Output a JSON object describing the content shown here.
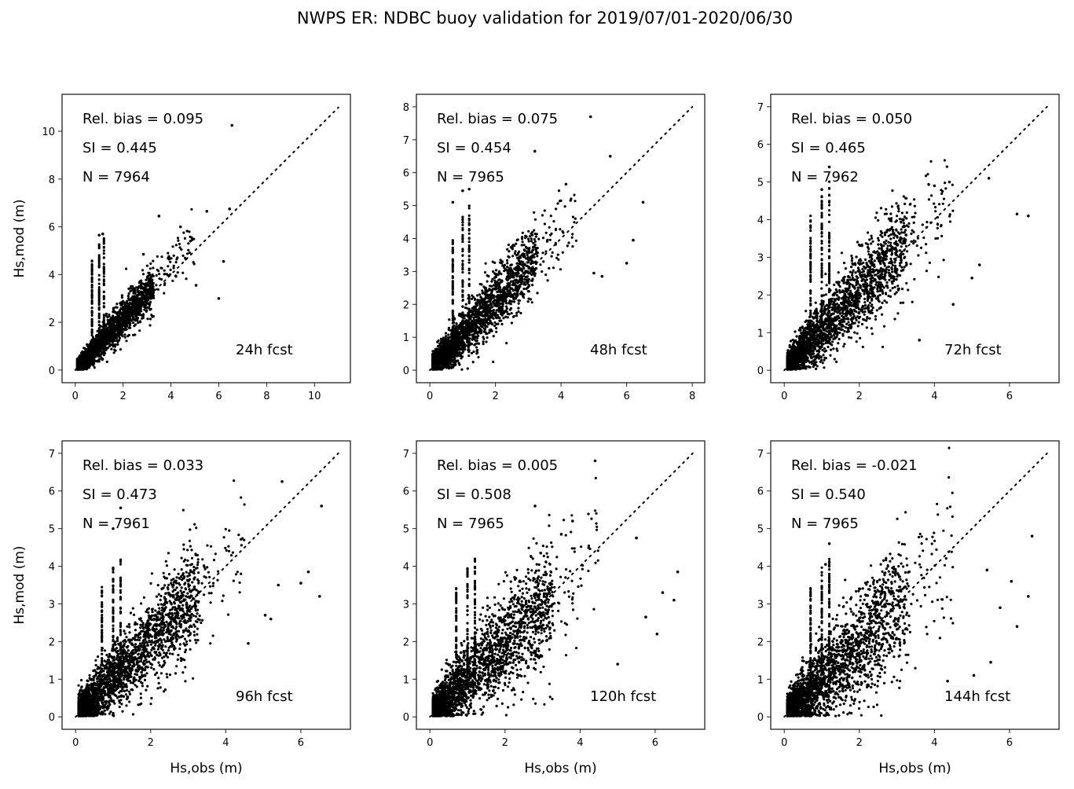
{
  "chart_data": {
    "type": "scatter",
    "title": "NWPS ER: NDBC buoy validation for 2019/07/01-2020/06/30",
    "marker_color": "#000000",
    "reference_line": "1:1 dotted diagonal",
    "panels": [
      {
        "id": "24h",
        "forecast_label": "24h fcst",
        "stats": {
          "rel_bias_label": "Rel. bias =  0.095",
          "si_label": "SI =  0.445",
          "n_label": "N = 7964"
        },
        "rel_bias": 0.095,
        "si": 0.445,
        "n": 7964,
        "xlabel": "",
        "ylabel": "Hs,mod (m)",
        "xlim": [
          -0.55,
          11.5
        ],
        "ylim": [
          -0.53,
          11.55
        ],
        "xticks": [
          0,
          2,
          4,
          6,
          8,
          10
        ],
        "yticks": [
          0,
          2,
          4,
          6,
          8,
          10
        ],
        "diag_max": 11,
        "spread": 0.3,
        "bias": 1.08,
        "outliers": [
          [
            6.55,
            10.25
          ],
          [
            3.5,
            6.45
          ],
          [
            5.5,
            6.65
          ],
          [
            6.45,
            6.75
          ],
          [
            6.2,
            4.55
          ],
          [
            6.0,
            3.0
          ],
          [
            5.05,
            3.55
          ],
          [
            4.4,
            6.0
          ],
          [
            2.85,
            4.85
          ],
          [
            1.15,
            5.7
          ],
          [
            1.0,
            5.65
          ]
        ]
      },
      {
        "id": "48h",
        "forecast_label": "48h fcst",
        "stats": {
          "rel_bias_label": "Rel. bias =  0.075",
          "si_label": "SI =  0.454",
          "n_label": "N = 7965"
        },
        "rel_bias": 0.075,
        "si": 0.454,
        "n": 7965,
        "xlabel": "",
        "ylabel": "",
        "xlim": [
          -0.41,
          8.38
        ],
        "ylim": [
          -0.38,
          8.38
        ],
        "xticks": [
          0,
          2,
          4,
          6,
          8
        ],
        "yticks": [
          0,
          1,
          2,
          3,
          4,
          5,
          6,
          7,
          8
        ],
        "diag_max": 8,
        "spread": 0.36,
        "bias": 1.06,
        "outliers": [
          [
            4.9,
            7.7
          ],
          [
            3.2,
            6.65
          ],
          [
            5.5,
            6.5
          ],
          [
            6.5,
            5.1
          ],
          [
            6.0,
            3.25
          ],
          [
            5.25,
            2.85
          ],
          [
            5.0,
            2.95
          ],
          [
            6.2,
            3.95
          ],
          [
            4.15,
            5.65
          ],
          [
            1.0,
            5.45
          ],
          [
            1.2,
            5.5
          ],
          [
            0.7,
            5.1
          ]
        ]
      },
      {
        "id": "72h",
        "forecast_label": "72h fcst",
        "stats": {
          "rel_bias_label": "Rel. bias =  0.050",
          "si_label": "SI =  0.465",
          "n_label": "N = 7962"
        },
        "rel_bias": 0.05,
        "si": 0.465,
        "n": 7962,
        "xlabel": "",
        "ylabel": "",
        "xlim": [
          -0.36,
          7.32
        ],
        "ylim": [
          -0.33,
          7.33
        ],
        "xticks": [
          0,
          2,
          4,
          6
        ],
        "yticks": [
          0,
          1,
          2,
          3,
          4,
          5,
          6,
          7
        ],
        "diag_max": 7,
        "spread": 0.4,
        "bias": 1.04,
        "outliers": [
          [
            1.2,
            5.4
          ],
          [
            6.2,
            4.15
          ],
          [
            6.5,
            4.1
          ],
          [
            4.0,
            4.9
          ],
          [
            4.4,
            5.0
          ],
          [
            5.45,
            5.1
          ],
          [
            5.2,
            2.8
          ],
          [
            5.0,
            2.45
          ],
          [
            3.6,
            0.8
          ],
          [
            4.5,
            1.75
          ],
          [
            1.0,
            4.8
          ]
        ]
      },
      {
        "id": "96h",
        "forecast_label": "96h fcst",
        "stats": {
          "rel_bias_label": "Rel. bias =  0.033",
          "si_label": "SI =  0.473",
          "n_label": "N = 7961"
        },
        "rel_bias": 0.033,
        "si": 0.473,
        "n": 7961,
        "xlabel": "Hs,obs (m)",
        "ylabel": "Hs,mod (m)",
        "xlim": [
          -0.36,
          7.32
        ],
        "ylim": [
          -0.33,
          7.33
        ],
        "xticks": [
          0,
          2,
          4,
          6
        ],
        "yticks": [
          0,
          1,
          2,
          3,
          4,
          5,
          6,
          7
        ],
        "diag_max": 7,
        "spread": 0.45,
        "bias": 1.02,
        "outliers": [
          [
            5.5,
            6.25
          ],
          [
            6.55,
            5.6
          ],
          [
            1.2,
            5.55
          ],
          [
            6.2,
            3.85
          ],
          [
            6.0,
            3.55
          ],
          [
            6.5,
            3.2
          ],
          [
            5.4,
            3.5
          ],
          [
            5.05,
            2.7
          ],
          [
            5.2,
            2.6
          ],
          [
            1.0,
            5.0
          ],
          [
            4.6,
            1.95
          ]
        ]
      },
      {
        "id": "120h",
        "forecast_label": "120h fcst",
        "stats": {
          "rel_bias_label": "Rel. bias =  0.005",
          "si_label": "SI =  0.508",
          "n_label": "N = 7965"
        },
        "rel_bias": 0.005,
        "si": 0.508,
        "n": 7965,
        "xlabel": "Hs,obs (m)",
        "ylabel": "",
        "xlim": [
          -0.36,
          7.32
        ],
        "ylim": [
          -0.33,
          7.33
        ],
        "xticks": [
          0,
          2,
          4,
          6
        ],
        "yticks": [
          0,
          1,
          2,
          3,
          4,
          5,
          6,
          7
        ],
        "diag_max": 7,
        "spread": 0.5,
        "bias": 0.99,
        "outliers": [
          [
            4.4,
            6.8
          ],
          [
            2.8,
            5.6
          ],
          [
            3.8,
            5.2
          ],
          [
            3.5,
            4.85
          ],
          [
            5.5,
            4.75
          ],
          [
            6.6,
            3.85
          ],
          [
            6.2,
            3.3
          ],
          [
            6.5,
            3.1
          ],
          [
            5.75,
            2.65
          ],
          [
            6.05,
            2.2
          ],
          [
            5.0,
            1.4
          ],
          [
            2.95,
            4.35
          ]
        ]
      },
      {
        "id": "144h",
        "forecast_label": "144h fcst",
        "stats": {
          "rel_bias_label": "Rel. bias = -0.021",
          "si_label": "SI =  0.540",
          "n_label": "N = 7965"
        },
        "rel_bias": -0.021,
        "si": 0.54,
        "n": 7965,
        "xlabel": "Hs,obs (m)",
        "ylabel": "",
        "xlim": [
          -0.36,
          7.32
        ],
        "ylim": [
          -0.33,
          7.33
        ],
        "xticks": [
          0,
          2,
          4,
          6
        ],
        "yticks": [
          0,
          1,
          2,
          3,
          4,
          5,
          6,
          7
        ],
        "diag_max": 7,
        "spread": 0.55,
        "bias": 0.96,
        "outliers": [
          [
            6.6,
            4.8
          ],
          [
            1.2,
            4.6
          ],
          [
            5.4,
            3.9
          ],
          [
            6.05,
            3.6
          ],
          [
            6.5,
            3.2
          ],
          [
            6.2,
            2.4
          ],
          [
            5.75,
            2.9
          ],
          [
            5.5,
            1.45
          ],
          [
            5.05,
            1.1
          ],
          [
            4.35,
            0.95
          ],
          [
            1.1,
            4.05
          ]
        ]
      }
    ]
  }
}
